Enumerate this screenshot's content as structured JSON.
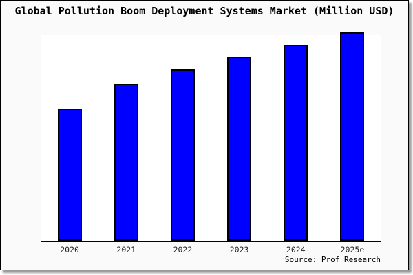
{
  "chart_data": {
    "type": "bar",
    "title": "Global Pollution Boom Deployment Systems Market (Million USD)",
    "categories": [
      "2020",
      "2021",
      "2022",
      "2023",
      "2024",
      "2025e"
    ],
    "values": [
      63,
      75,
      82,
      88,
      94,
      100
    ],
    "value_note": "no y-axis scale shown; values are relative bar heights with 2025e = 100",
    "xlabel": "",
    "ylabel": "",
    "ylim": [
      0,
      100
    ],
    "grid": false,
    "legend_position": "none",
    "bar_color": "#0000ff",
    "bar_edge_color": "#000000"
  },
  "source_credit": "Source: Prof Research",
  "colors": {
    "card_background": "#fafafa",
    "plot_background": "#ffffff",
    "frame_border": "#000000",
    "title_text": "#000000",
    "tick_text": "#1f1f1f",
    "shadow": "#9a9a9a"
  }
}
